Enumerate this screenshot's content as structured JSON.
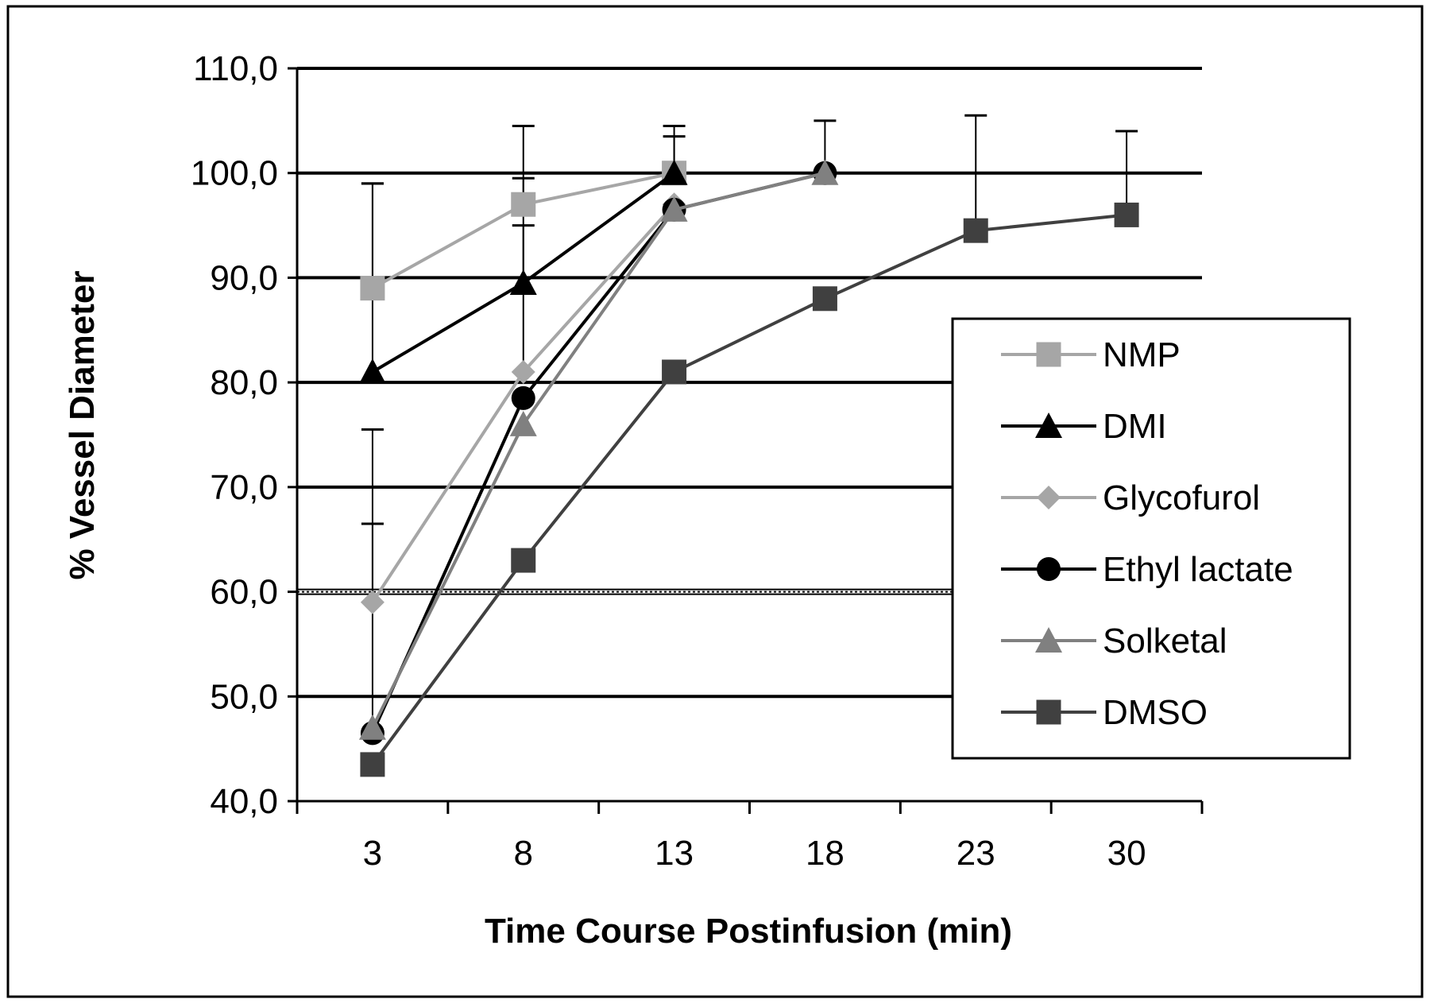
{
  "chart_data": {
    "type": "line",
    "title": "",
    "xlabel": "Time Course Postinfusion (min)",
    "ylabel": "%  Vessel Diameter",
    "categories": [
      "3",
      "8",
      "13",
      "18",
      "23",
      "30"
    ],
    "ylim": [
      40,
      110
    ],
    "yticks": [
      40,
      50,
      60,
      70,
      80,
      90,
      100,
      110
    ],
    "ytick_labels": [
      "40,0",
      "50,0",
      "60,0",
      "70,0",
      "80,0",
      "90,0",
      "100,0",
      "110,0"
    ],
    "grid": true,
    "reference_line": 60,
    "legend_position": "right",
    "series": [
      {
        "name": "NMP",
        "marker": "square",
        "color": "#a6a6a6",
        "values": [
          89.0,
          97.0,
          100.0,
          null,
          null,
          null
        ],
        "error_upper": [
          99.0,
          99.5,
          103.5,
          null,
          null,
          null
        ]
      },
      {
        "name": "DMI",
        "marker": "triangle",
        "color": "#000000",
        "values": [
          81.0,
          89.5,
          100.0,
          null,
          null,
          null
        ],
        "error_upper": [
          99.0,
          104.5,
          104.5,
          null,
          null,
          null
        ]
      },
      {
        "name": "Glycofurol",
        "marker": "diamond",
        "color": "#a6a6a6",
        "values": [
          59.0,
          81.0,
          97.0,
          null,
          null,
          null
        ],
        "error_upper": [
          66.5,
          95.0,
          null,
          null,
          null,
          null
        ]
      },
      {
        "name": "Ethyl lactate",
        "marker": "circle",
        "color": "#000000",
        "values": [
          46.5,
          78.5,
          96.5,
          100.0,
          null,
          null
        ],
        "error_upper": [
          75.5,
          null,
          null,
          105.0,
          null,
          null
        ]
      },
      {
        "name": "Solketal",
        "marker": "triangle",
        "color": "#808080",
        "values": [
          47.0,
          76.0,
          96.5,
          100.0,
          null,
          null
        ],
        "error_upper": [
          null,
          null,
          null,
          null,
          null,
          null
        ]
      },
      {
        "name": "DMSO",
        "marker": "square",
        "color": "#404040",
        "values": [
          43.5,
          63.0,
          81.0,
          88.0,
          94.5,
          96.0
        ],
        "error_upper": [
          null,
          null,
          null,
          null,
          105.5,
          104.0
        ]
      }
    ]
  }
}
